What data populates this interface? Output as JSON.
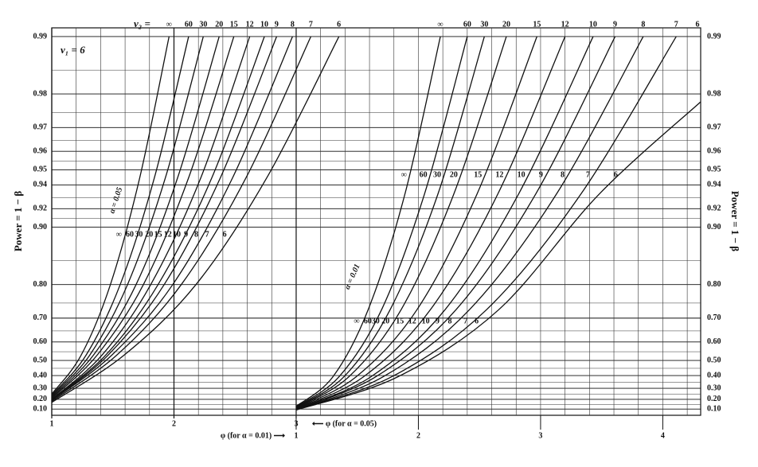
{
  "chart_data": {
    "type": "line",
    "y_scale": "log-complement",
    "nu1_label": "ν₁ = 6",
    "nu2_label": "ν₂ =",
    "y_label": "Power = 1 − β",
    "x_label": "⟵ φ (for α = 0.05)",
    "x2_label": "φ (for α = 0.01) ⟶",
    "alpha_labels": [
      "α = 0.05",
      "α = 0.01"
    ],
    "xlim": [
      1,
      6.31
    ],
    "xticks": [
      1,
      2,
      3
    ],
    "x2lim": [
      -1,
      4.31
    ],
    "x2ticks": [
      1,
      2,
      3,
      4
    ],
    "xminor": [
      1.2,
      1.4,
      1.6,
      1.8,
      2.2,
      2.4,
      2.6,
      2.8,
      3.2,
      3.4,
      3.6,
      3.8,
      4,
      4.2,
      4.4,
      4.6,
      4.8,
      5,
      5.2,
      5.4,
      5.6,
      5.8,
      6,
      6.2
    ],
    "ylim": [
      0.03,
      0.991
    ],
    "yticks": [
      {
        "value": 0.1,
        "label": "0.10"
      },
      {
        "value": 0.2,
        "label": "0.20"
      },
      {
        "value": 0.3,
        "label": "0.30"
      },
      {
        "value": 0.4,
        "label": "0.40"
      },
      {
        "value": 0.5,
        "label": "0.50"
      },
      {
        "value": 0.6,
        "label": "0.60"
      },
      {
        "value": 0.7,
        "label": "0.70"
      },
      {
        "value": 0.8,
        "label": "0.80"
      },
      {
        "value": 0.9,
        "label": "0.90"
      },
      0.92,
      0.94,
      0.95,
      0.96,
      0.97,
      0.98,
      0.99
    ],
    "yminor": [
      0.15,
      0.25,
      0.35,
      0.45,
      0.55,
      0.65,
      0.75,
      0.85,
      0.91,
      0.93,
      0.955,
      0.965,
      0.975,
      0.985
    ],
    "grid": true,
    "color": "#111111",
    "series": [
      {
        "name": "∞",
        "x": [
          1,
          1.24,
          1.48,
          1.72,
          1.96
        ],
        "values": [
          0.25,
          0.53,
          0.8,
          0.945,
          0.99
        ]
      },
      {
        "name": "60",
        "x": [
          1,
          1.28,
          1.56,
          1.84,
          2.12
        ],
        "values": [
          0.24,
          0.53,
          0.8,
          0.945,
          0.99
        ]
      },
      {
        "name": "30",
        "x": [
          1,
          1.31,
          1.62,
          1.93,
          2.24
        ],
        "values": [
          0.23,
          0.53,
          0.8,
          0.945,
          0.99
        ]
      },
      {
        "name": "20",
        "x": [
          1,
          1.34,
          1.69,
          2.03,
          2.37
        ],
        "values": [
          0.22,
          0.53,
          0.8,
          0.945,
          0.99
        ]
      },
      {
        "name": "15",
        "x": [
          1,
          1.37,
          1.75,
          2.12,
          2.49
        ],
        "values": [
          0.21,
          0.53,
          0.8,
          0.945,
          0.99
        ]
      },
      {
        "name": "12",
        "x": [
          1,
          1.41,
          1.81,
          2.22,
          2.62
        ],
        "values": [
          0.2,
          0.53,
          0.8,
          0.945,
          0.99
        ]
      },
      {
        "name": "10",
        "x": [
          1,
          1.44,
          1.87,
          2.31,
          2.74
        ],
        "values": [
          0.2,
          0.53,
          0.8,
          0.945,
          0.99
        ]
      },
      {
        "name": "9",
        "x": [
          1,
          1.46,
          1.92,
          2.38,
          2.84
        ],
        "values": [
          0.19,
          0.53,
          0.8,
          0.945,
          0.99
        ]
      },
      {
        "name": "8",
        "x": [
          1,
          1.49,
          1.99,
          2.48,
          2.97
        ],
        "values": [
          0.19,
          0.53,
          0.8,
          0.945,
          0.99
        ]
      },
      {
        "name": "7",
        "x": [
          1,
          1.53,
          2.06,
          2.59,
          3.12
        ],
        "values": [
          0.18,
          0.53,
          0.8,
          0.945,
          0.99
        ]
      },
      {
        "name": "6",
        "x": [
          1,
          1.59,
          2.18,
          2.76,
          3.35
        ],
        "values": [
          0.17,
          0.53,
          0.8,
          0.945,
          0.99
        ]
      },
      {
        "name": "∞",
        "axis": "x2",
        "x": [
          1,
          1.3,
          1.59,
          1.89,
          2.18
        ],
        "values": [
          0.13,
          0.39,
          0.73,
          0.933,
          0.99
        ]
      },
      {
        "name": "60",
        "axis": "x2",
        "x": [
          1,
          1.35,
          1.7,
          2.05,
          2.4
        ],
        "values": [
          0.125,
          0.39,
          0.73,
          0.933,
          0.99
        ]
      },
      {
        "name": "30",
        "axis": "x2",
        "x": [
          1,
          1.39,
          1.77,
          2.16,
          2.54
        ],
        "values": [
          0.12,
          0.39,
          0.73,
          0.933,
          0.99
        ]
      },
      {
        "name": "20",
        "axis": "x2",
        "x": [
          1,
          1.43,
          1.86,
          2.29,
          2.72
        ],
        "values": [
          0.115,
          0.39,
          0.73,
          0.933,
          0.99
        ]
      },
      {
        "name": "15",
        "axis": "x2",
        "x": [
          1,
          1.49,
          1.99,
          2.48,
          2.97
        ],
        "values": [
          0.11,
          0.39,
          0.73,
          0.933,
          0.99
        ]
      },
      {
        "name": "12",
        "axis": "x2",
        "x": [
          1,
          1.55,
          2.1,
          2.65,
          3.2
        ],
        "values": [
          0.105,
          0.39,
          0.73,
          0.933,
          0.99
        ]
      },
      {
        "name": "10",
        "axis": "x2",
        "x": [
          1,
          1.61,
          2.22,
          2.82,
          3.43
        ],
        "values": [
          0.1,
          0.39,
          0.73,
          0.933,
          0.99
        ]
      },
      {
        "name": "9",
        "axis": "x2",
        "x": [
          1,
          1.65,
          2.31,
          2.96,
          3.61
        ],
        "values": [
          0.1,
          0.39,
          0.73,
          0.933,
          0.99
        ]
      },
      {
        "name": "8",
        "axis": "x2",
        "x": [
          1,
          1.71,
          2.42,
          3.13,
          3.84
        ],
        "values": [
          0.095,
          0.39,
          0.73,
          0.933,
          0.99
        ]
      },
      {
        "name": "7",
        "axis": "x2",
        "x": [
          1,
          1.78,
          2.56,
          3.33,
          4.11
        ],
        "values": [
          0.095,
          0.39,
          0.73,
          0.933,
          0.99
        ]
      },
      {
        "name": "6",
        "axis": "x2",
        "x": [
          1,
          1.83,
          2.66,
          3.48,
          4.31
        ],
        "values": [
          0.09,
          0.39,
          0.73,
          0.933,
          0.978
        ]
      }
    ]
  }
}
